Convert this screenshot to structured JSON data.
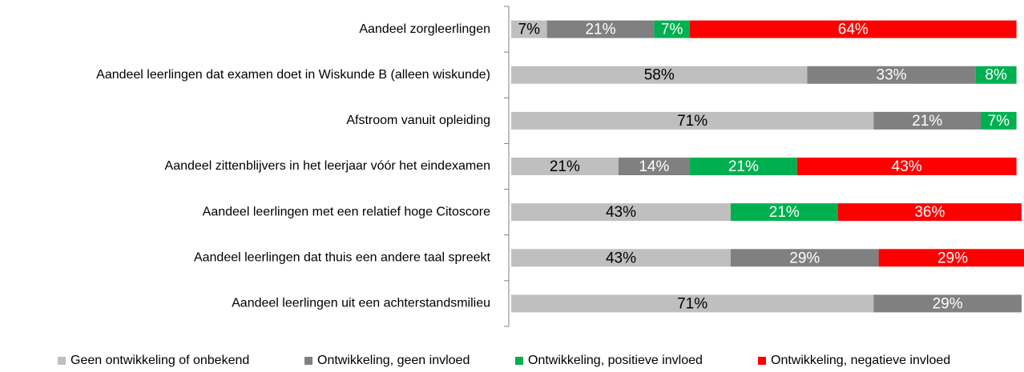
{
  "chart_data": {
    "type": "stacked-bar-horizontal",
    "categories": [
      "Aandeel zorgleerlingen",
      "Aandeel leerlingen dat examen doet in Wiskunde B (alleen wiskunde)",
      "Afstroom vanuit opleiding",
      "Aandeel zittenblijvers in het leerjaar vóór het eindexamen",
      "Aandeel leerlingen met een relatief hoge Citoscore",
      "Aandeel leerlingen dat thuis een andere taal spreekt",
      "Aandeel leerlingen uit een achterstandsmilieu"
    ],
    "series": [
      {
        "name": "Geen ontwikkeling of onbekend",
        "color": "#bfbfbf",
        "values": [
          7,
          58,
          71,
          21,
          43,
          43,
          71
        ],
        "value_labels": [
          "7%",
          "58%",
          "71%",
          "21%",
          "43%",
          "43%",
          "71%"
        ]
      },
      {
        "name": "Ontwikkeling, geen invloed",
        "color": "#808080",
        "values": [
          21,
          33,
          21,
          14,
          null,
          29,
          29
        ],
        "value_labels": [
          "21%",
          "33%",
          "21%",
          "14%",
          null,
          "29%",
          "29%"
        ]
      },
      {
        "name": "Ontwikkeling, positieve invloed",
        "color": "#00b050",
        "values": [
          7,
          8,
          7,
          21,
          21,
          null,
          null
        ],
        "value_labels": [
          "7%",
          "8%",
          "7%",
          "21%",
          "21%",
          null,
          null
        ]
      },
      {
        "name": "Ontwikkeling, negatieve invloed",
        "color": "#ff0000",
        "values": [
          64,
          null,
          null,
          43,
          36,
          29,
          null
        ],
        "value_labels": [
          "64%",
          null,
          null,
          "43%",
          "36%",
          "29%",
          null
        ]
      }
    ],
    "xlim": [
      0,
      100
    ],
    "legend": "bottom"
  }
}
